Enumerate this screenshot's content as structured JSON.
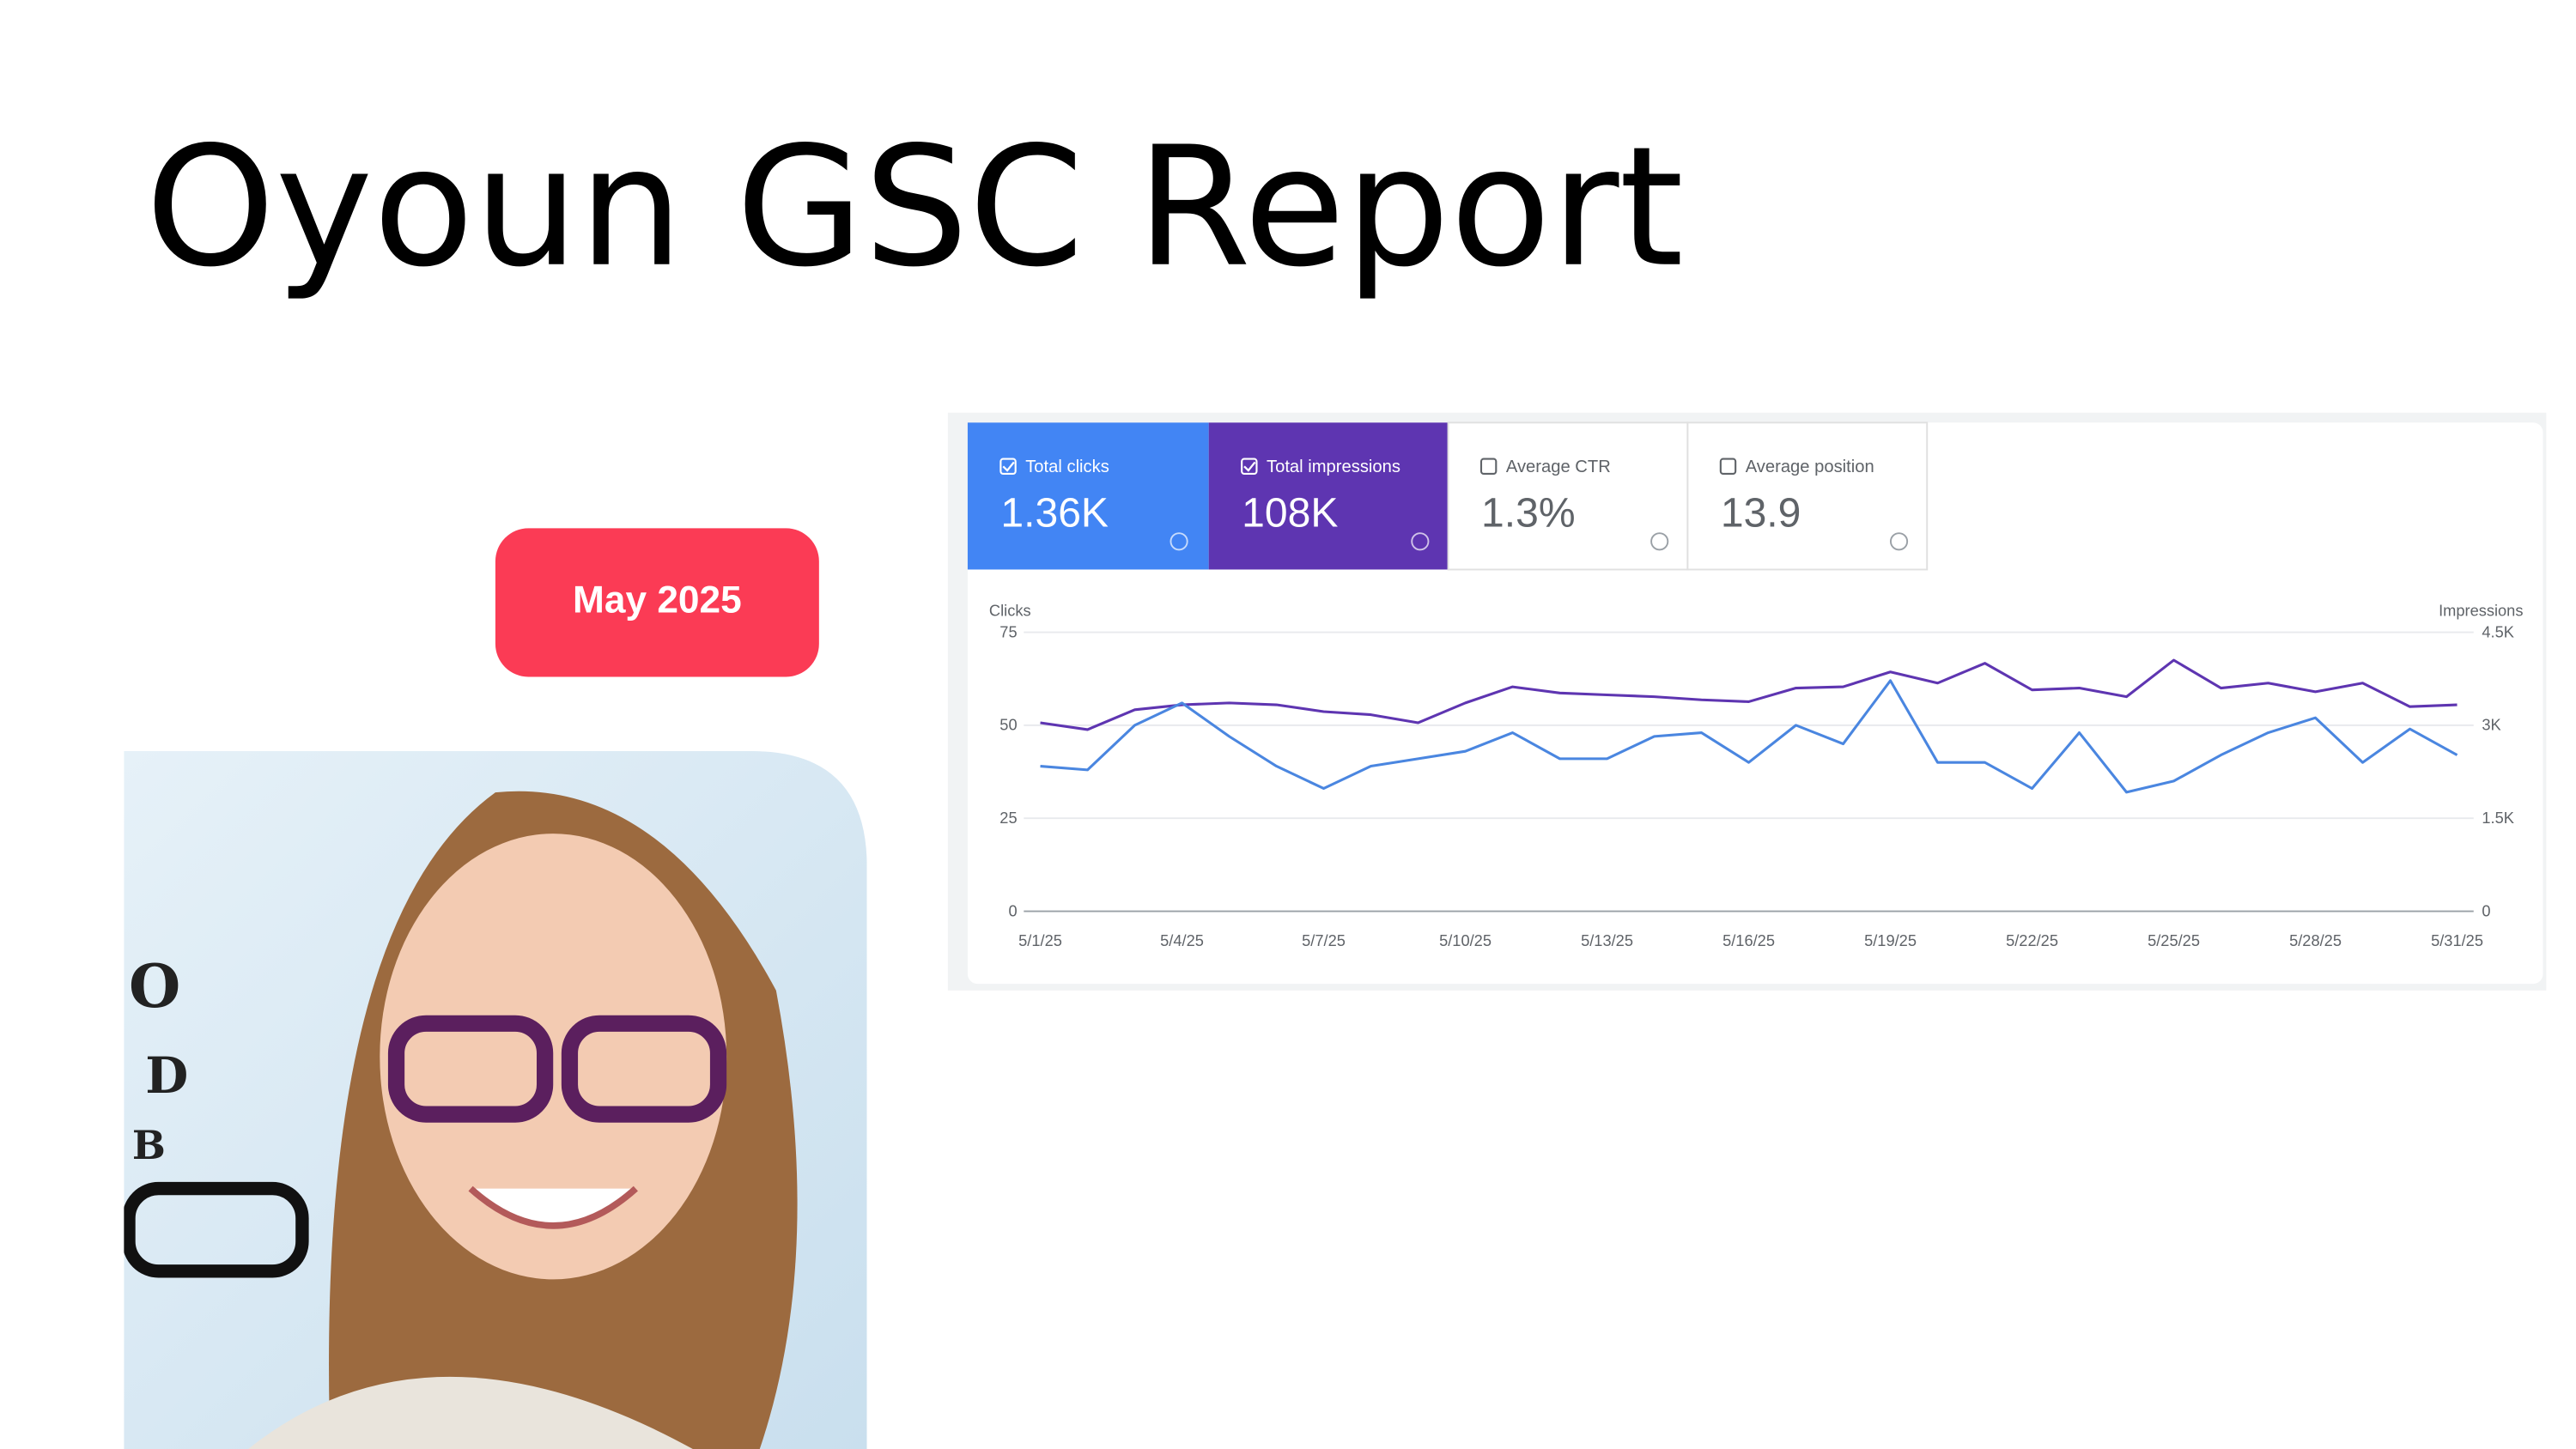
{
  "title": "Oyoun GSC Report",
  "badge": "May 2025",
  "metrics": [
    {
      "label": "Total clicks",
      "value": "1.36K"
    },
    {
      "label": "Total impressions",
      "value": "108K"
    },
    {
      "label": "Average CTR",
      "value": "1.3%"
    },
    {
      "label": "Average position",
      "value": "13.9"
    }
  ],
  "chart_data": {
    "type": "line",
    "y_label": "Clicks",
    "y2_label": "Impressions",
    "categories": [
      "5/1/25",
      null,
      null,
      "5/4/25",
      null,
      null,
      "5/7/25",
      null,
      null,
      "5/10/25",
      null,
      null,
      "5/13/25",
      null,
      null,
      "5/16/25",
      null,
      null,
      "5/19/25",
      null,
      null,
      "5/22/25",
      null,
      null,
      "5/25/25",
      null,
      null,
      "5/28/25",
      null,
      null,
      "5/31/25"
    ],
    "series": [
      {
        "name": "Clicks",
        "color": "#4a86e0",
        "values": [
          39,
          38,
          50,
          56,
          47,
          39,
          33,
          39,
          41,
          43,
          48,
          41,
          41,
          47,
          48,
          40,
          50,
          45,
          62,
          40,
          40,
          33,
          48,
          32,
          35,
          42,
          48,
          52,
          40,
          49,
          42
        ]
      },
      {
        "name": "Impressions",
        "color": "#5e35b1",
        "axis": "y2",
        "values": [
          3040,
          2930,
          3250,
          3330,
          3360,
          3330,
          3220,
          3170,
          3040,
          3360,
          3620,
          3520,
          3490,
          3460,
          3410,
          3380,
          3600,
          3620,
          3860,
          3680,
          4000,
          3570,
          3600,
          3460,
          4050,
          3600,
          3680,
          3540,
          3680,
          3300,
          3330
        ]
      }
    ],
    "ylim": [
      0,
      75
    ],
    "yticks": [
      0,
      25,
      50,
      75
    ],
    "y2lim": [
      0,
      4500
    ],
    "y2ticks": [
      0,
      {
        "value": 1500,
        "label": "1.5K"
      },
      {
        "value": 3000,
        "label": "3K"
      },
      {
        "value": 4500,
        "label": "4.5K"
      }
    ],
    "grid": true
  }
}
